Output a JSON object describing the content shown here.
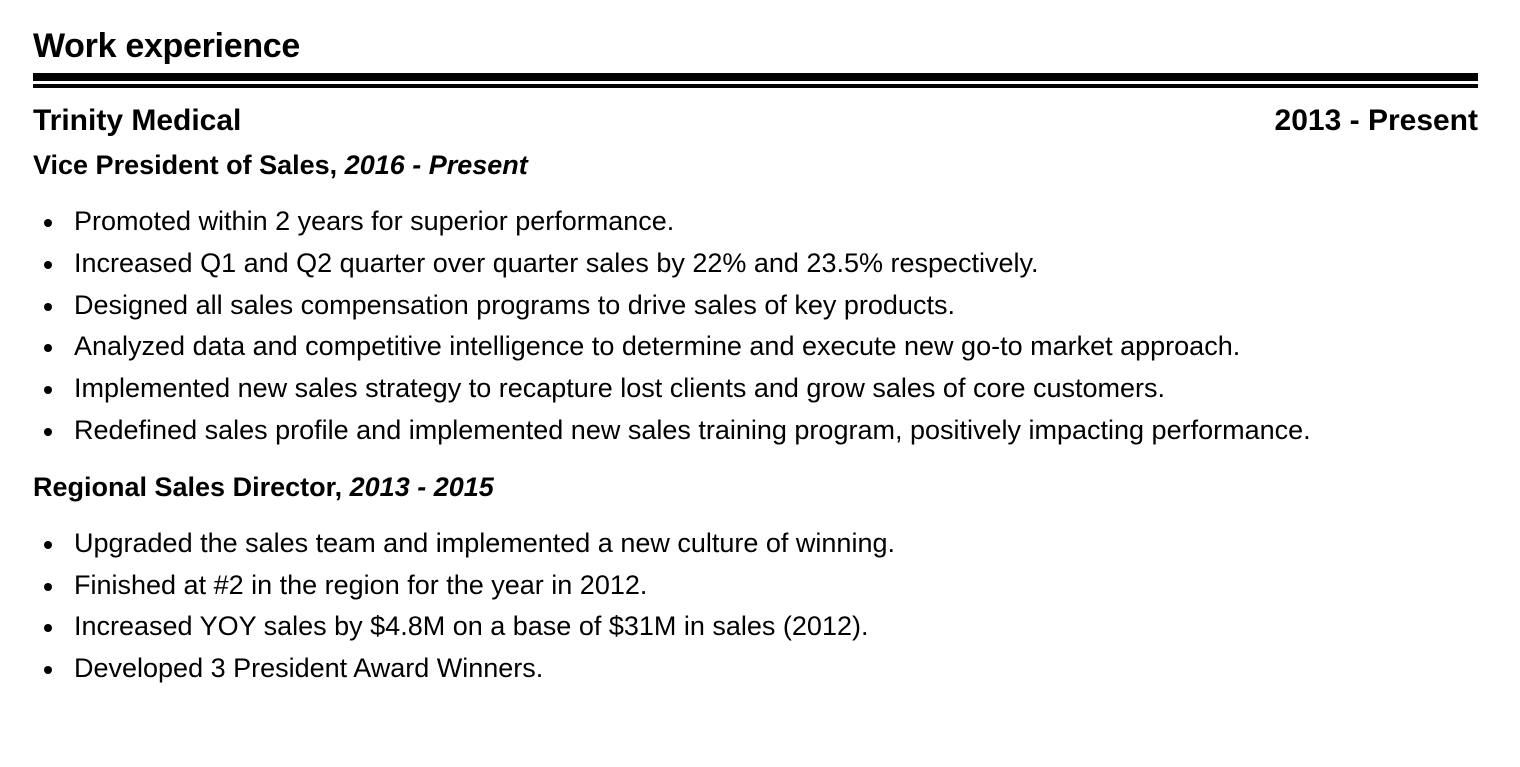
{
  "section": {
    "title": "Work experience"
  },
  "company": {
    "name": "Trinity Medical",
    "dates": "2013 - Present"
  },
  "roles": [
    {
      "title": "Vice President of Sales,",
      "dates": "2016 - Present",
      "bullets": [
        "Promoted within 2 years for superior performance.",
        "Increased Q1 and Q2 quarter over quarter sales by 22% and 23.5% respectively.",
        "Designed all sales compensation programs to drive sales of key products.",
        "Analyzed data and competitive intelligence to determine and execute new go-to market approach.",
        "Implemented new sales strategy to recapture lost clients and grow sales of core customers.",
        "Redefined sales profile and implemented new sales training program, positively impacting performance."
      ]
    },
    {
      "title": "Regional Sales Director,",
      "dates": "2013 - 2015",
      "bullets": [
        "Upgraded the sales team and implemented a new culture of winning.",
        "Finished at #2 in the region for the year in 2012.",
        "Increased YOY sales by $4.8M on a base of $31M in sales (2012).",
        "Developed 3 President Award Winners."
      ]
    }
  ]
}
